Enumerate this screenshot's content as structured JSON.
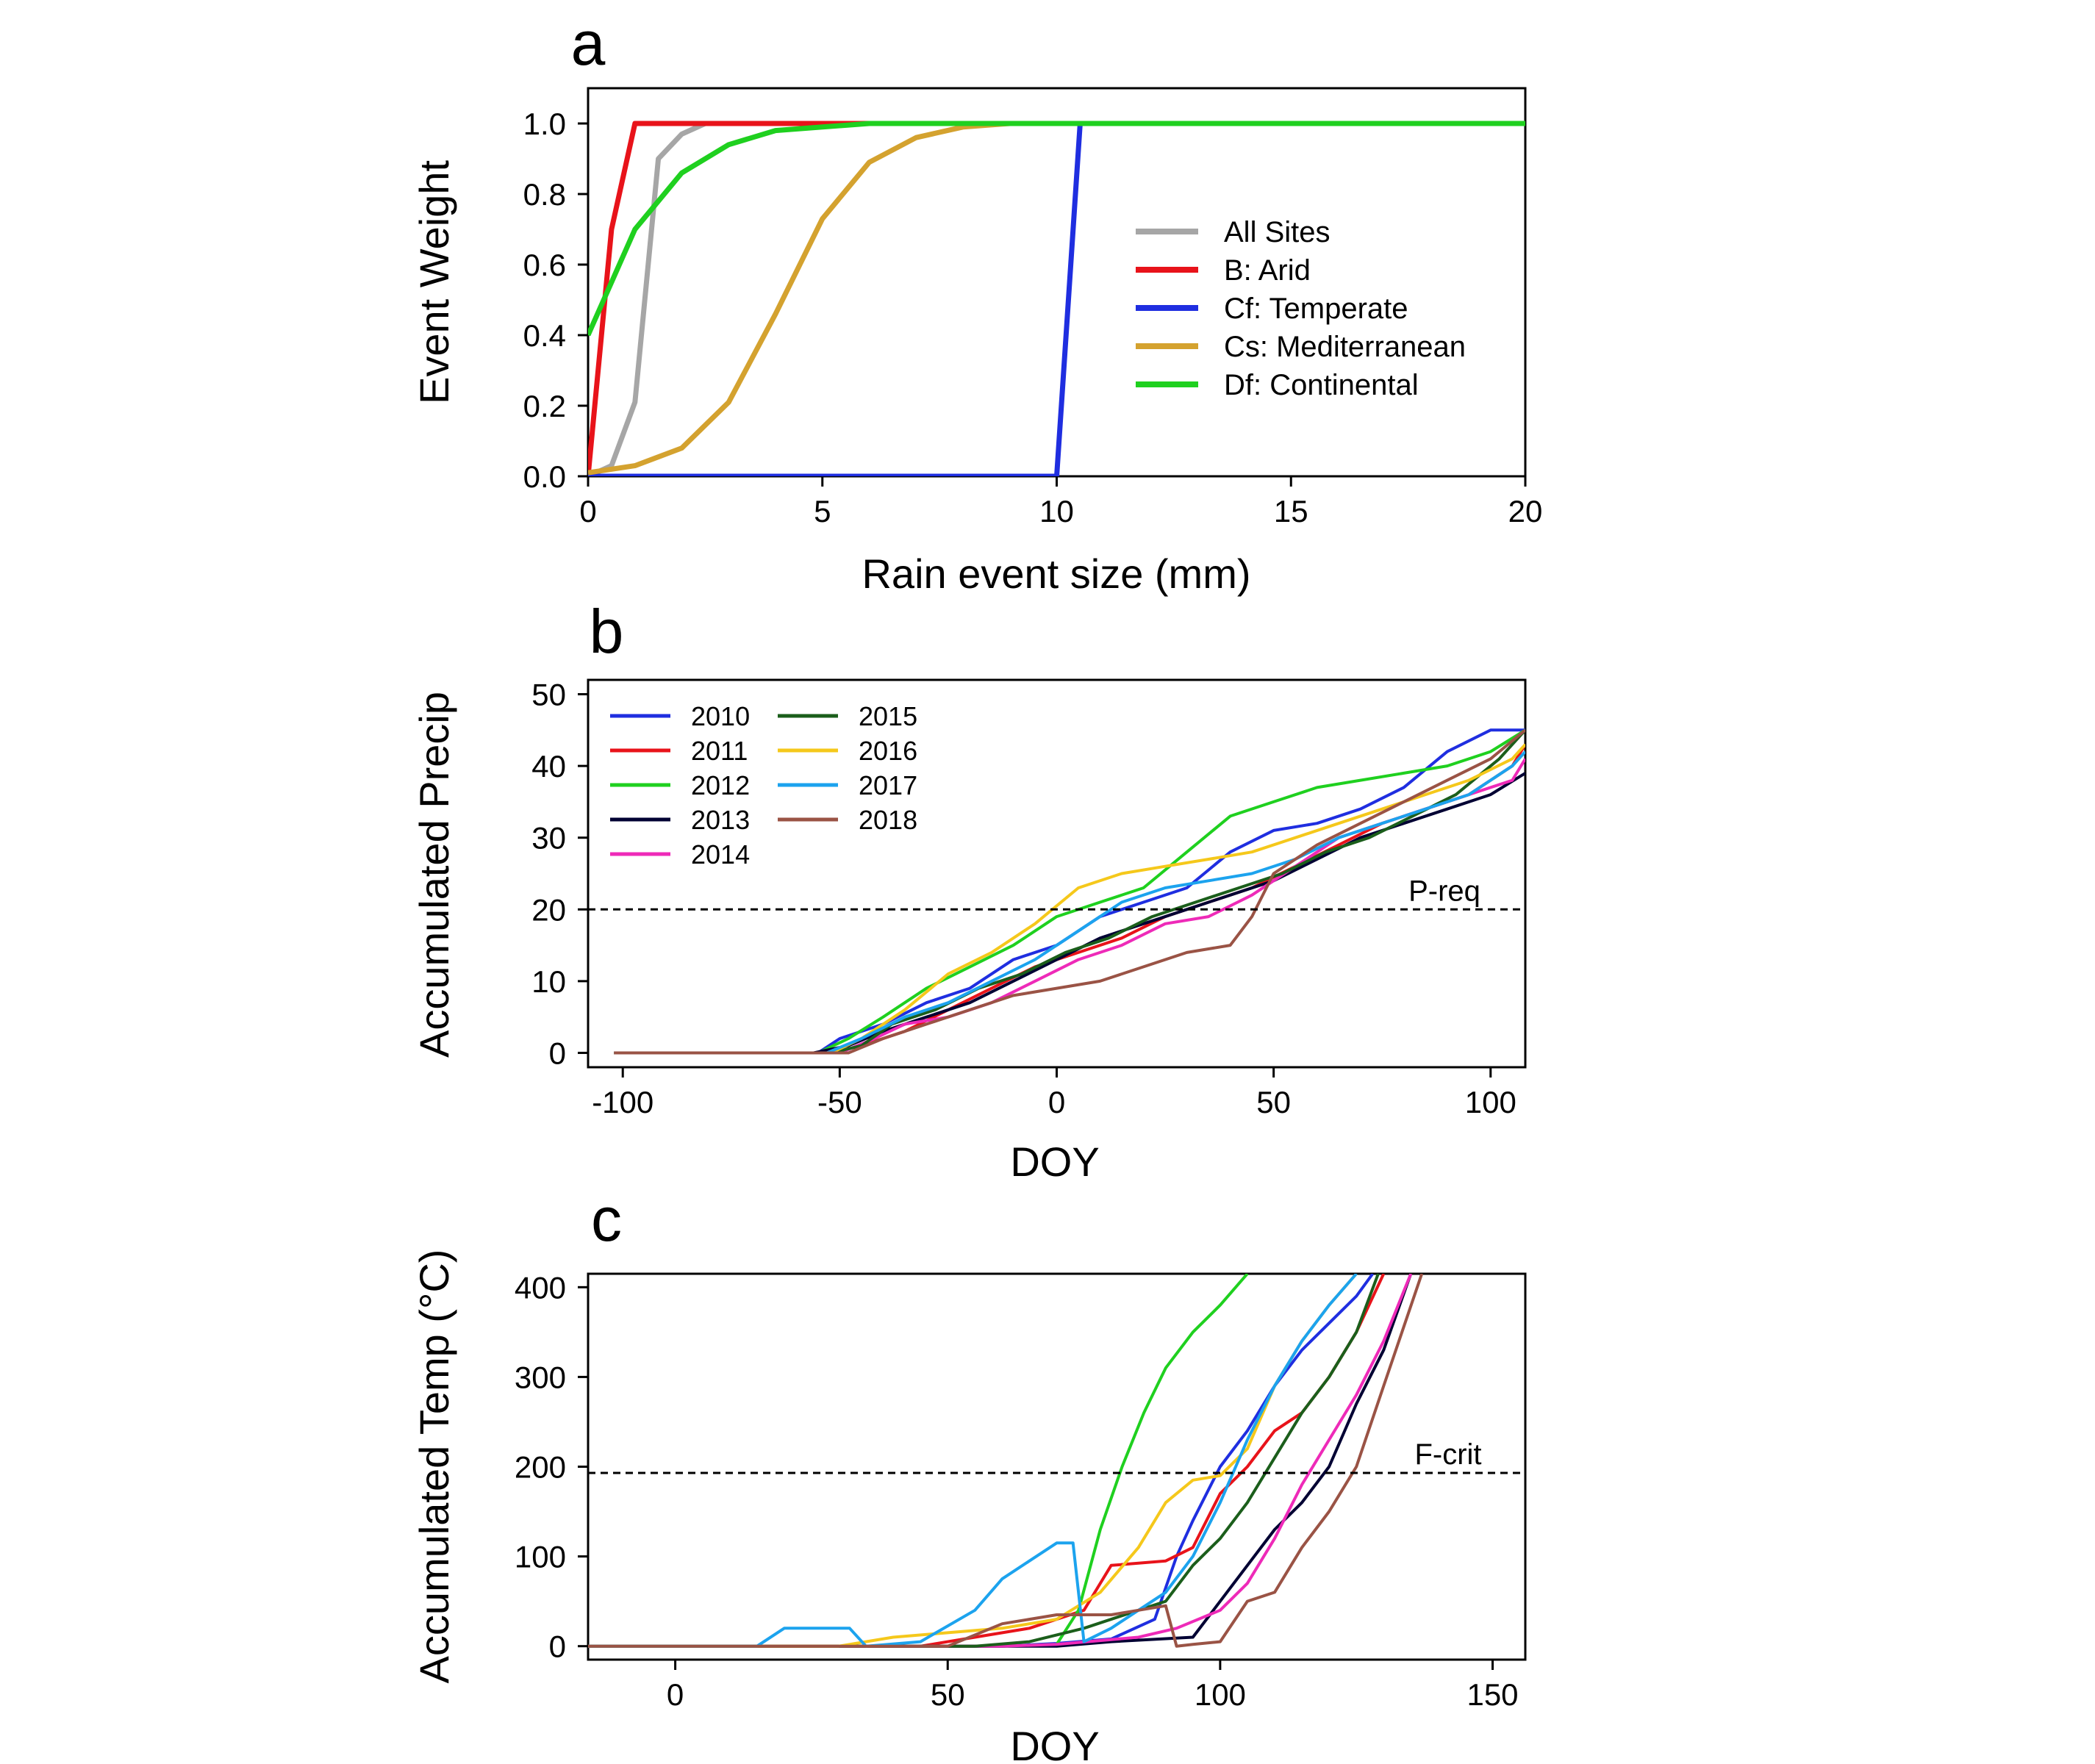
{
  "chart_data": [
    {
      "panel": "a",
      "type": "line",
      "xlabel": "Rain event size (mm)",
      "ylabel": "Event Weight",
      "xlim": [
        0,
        20
      ],
      "ylim": [
        0,
        1.1
      ],
      "xticks": [
        "0",
        "5",
        "10",
        "15",
        "20"
      ],
      "yticks": [
        "0.0",
        "0.2",
        "0.4",
        "0.6",
        "0.8",
        "1.0"
      ],
      "xtick_values": [
        0,
        5,
        10,
        15,
        20
      ],
      "ytick_values": [
        0,
        0.2,
        0.4,
        0.6,
        0.8,
        1.0
      ],
      "legend_position": "center-right",
      "series": [
        {
          "name": "All Sites",
          "color": "#a6a6a6",
          "x": [
            0,
            0.5,
            1.0,
            1.5,
            2.0,
            2.5,
            3.0,
            20
          ],
          "y": [
            0,
            0.03,
            0.21,
            0.9,
            0.97,
            1.0,
            1.0,
            1.0
          ]
        },
        {
          "name": "B: Arid",
          "color": "#e8131a",
          "x": [
            0,
            0.5,
            1.0,
            20
          ],
          "y": [
            0,
            0.7,
            1.0,
            1.0
          ]
        },
        {
          "name": "Cf: Temperate",
          "color": "#1f2ee0",
          "x": [
            0,
            10,
            10.5,
            20
          ],
          "y": [
            0,
            0,
            1.0,
            1.0
          ]
        },
        {
          "name": "Cs: Mediterranean",
          "color": "#d4a22f",
          "x": [
            0,
            1,
            2,
            3,
            4,
            5,
            6,
            7,
            8,
            9,
            10,
            20
          ],
          "y": [
            0.01,
            0.03,
            0.08,
            0.21,
            0.46,
            0.73,
            0.89,
            0.96,
            0.99,
            1.0,
            1.0,
            1.0
          ]
        },
        {
          "name": "Df: Continental",
          "color": "#1fd01f",
          "x": [
            0,
            1,
            2,
            3,
            4,
            5,
            6,
            7,
            8,
            10,
            20
          ],
          "y": [
            0.4,
            0.7,
            0.86,
            0.94,
            0.98,
            0.99,
            1.0,
            1.0,
            1.0,
            1.0,
            1.0
          ]
        }
      ]
    },
    {
      "panel": "b",
      "type": "line",
      "xlabel": "DOY",
      "ylabel": "Accumulated Precip",
      "xlim": [
        -108,
        108
      ],
      "ylim": [
        -2,
        52
      ],
      "xticks": [
        "-100",
        "-50",
        "0",
        "50",
        "100"
      ],
      "yticks": [
        "0",
        "10",
        "20",
        "30",
        "40",
        "50"
      ],
      "xtick_values": [
        -100,
        -50,
        0,
        50,
        100
      ],
      "ytick_values": [
        0,
        10,
        20,
        30,
        40,
        50
      ],
      "legend_position": "top-left",
      "reference_line": {
        "label": "P-req",
        "y": 20
      },
      "series": [
        {
          "name": "2010",
          "color": "#1f2ee0",
          "x": [
            -102,
            -55,
            -50,
            -40,
            -30,
            -20,
            -10,
            0,
            10,
            20,
            30,
            40,
            50,
            60,
            70,
            80,
            90,
            100,
            108
          ],
          "y": [
            0,
            0,
            2,
            4,
            7,
            9,
            13,
            15,
            19,
            21,
            23,
            28,
            31,
            32,
            34,
            37,
            42,
            45,
            45
          ]
        },
        {
          "name": "2011",
          "color": "#e8131a",
          "x": [
            -102,
            -52,
            -45,
            -35,
            -25,
            -15,
            -5,
            5,
            15,
            25,
            35,
            45,
            55,
            65,
            75,
            85,
            95,
            105,
            108
          ],
          "y": [
            0,
            0,
            1,
            3,
            6,
            9,
            12,
            14,
            16,
            19,
            21,
            23,
            26,
            29,
            32,
            34,
            36,
            40,
            43
          ]
        },
        {
          "name": "2012",
          "color": "#1fd01f",
          "x": [
            -102,
            -55,
            -48,
            -40,
            -30,
            -20,
            -10,
            0,
            10,
            20,
            30,
            40,
            50,
            60,
            70,
            80,
            90,
            100,
            108
          ],
          "y": [
            0,
            0,
            2,
            5,
            9,
            12,
            15,
            19,
            21,
            23,
            28,
            33,
            35,
            37,
            38,
            39,
            40,
            42,
            45
          ]
        },
        {
          "name": "2013",
          "color": "#000033",
          "x": [
            -102,
            -56,
            -48,
            -40,
            -30,
            -20,
            -10,
            0,
            10,
            20,
            30,
            40,
            50,
            60,
            70,
            80,
            90,
            100,
            108
          ],
          "y": [
            0,
            0,
            1,
            3,
            5,
            7,
            10,
            13,
            16,
            18,
            20,
            22,
            24,
            27,
            30,
            32,
            34,
            36,
            39
          ]
        },
        {
          "name": "2014",
          "color": "#ee2ab8",
          "x": [
            -102,
            -50,
            -42,
            -35,
            -25,
            -15,
            -5,
            5,
            15,
            25,
            35,
            45,
            55,
            65,
            75,
            85,
            95,
            105,
            108
          ],
          "y": [
            0,
            0,
            2,
            4,
            5,
            7,
            10,
            13,
            15,
            18,
            19,
            22,
            26,
            30,
            32,
            34,
            36,
            38,
            41
          ]
        },
        {
          "name": "2015",
          "color": "#1b5e1b",
          "x": [
            -102,
            -52,
            -45,
            -38,
            -28,
            -18,
            -8,
            2,
            12,
            22,
            32,
            42,
            52,
            62,
            72,
            82,
            92,
            102,
            108
          ],
          "y": [
            0,
            0,
            1,
            4,
            6,
            9,
            11,
            14,
            16,
            19,
            21,
            23,
            25,
            28,
            30,
            33,
            36,
            41,
            45
          ]
        },
        {
          "name": "2016",
          "color": "#f5c81b",
          "x": [
            -102,
            -52,
            -45,
            -35,
            -25,
            -15,
            -5,
            5,
            15,
            25,
            35,
            45,
            55,
            65,
            75,
            85,
            95,
            105,
            108
          ],
          "y": [
            0,
            0,
            2,
            6,
            11,
            14,
            18,
            23,
            25,
            26,
            27,
            28,
            30,
            32,
            34,
            36,
            38,
            41,
            43
          ]
        },
        {
          "name": "2017",
          "color": "#1ca3ee",
          "x": [
            -102,
            -53,
            -45,
            -35,
            -25,
            -15,
            -5,
            5,
            15,
            25,
            35,
            45,
            55,
            65,
            75,
            85,
            95,
            105,
            108
          ],
          "y": [
            0,
            0,
            2,
            5,
            7,
            10,
            13,
            17,
            21,
            23,
            24,
            25,
            27,
            30,
            32,
            34,
            36,
            40,
            42
          ]
        },
        {
          "name": "2018",
          "color": "#9a5345",
          "x": [
            -102,
            -48,
            -40,
            -30,
            -20,
            -10,
            0,
            10,
            20,
            30,
            40,
            45,
            50,
            60,
            70,
            80,
            90,
            100,
            108
          ],
          "y": [
            0,
            0,
            2,
            4,
            6,
            8,
            9,
            10,
            12,
            14,
            15,
            19,
            25,
            29,
            32,
            35,
            38,
            41,
            45
          ]
        }
      ]
    },
    {
      "panel": "c",
      "type": "line",
      "xlabel": "DOY",
      "ylabel": "Accumulated Temp (°C)",
      "xlim": [
        -16,
        156
      ],
      "ylim": [
        -15,
        415
      ],
      "xticks": [
        "0",
        "50",
        "100",
        "150"
      ],
      "yticks": [
        "0",
        "100",
        "200",
        "300",
        "400"
      ],
      "xtick_values": [
        0,
        50,
        100,
        150
      ],
      "ytick_values": [
        0,
        100,
        200,
        300,
        400
      ],
      "reference_line": {
        "label": "F-crit",
        "y": 193
      },
      "series": [
        {
          "name": "2010",
          "color": "#1f2ee0",
          "x": [
            -16,
            60,
            70,
            80,
            88,
            92,
            95,
            100,
            105,
            110,
            115,
            120,
            125,
            128
          ],
          "y": [
            0,
            0,
            3,
            8,
            30,
            100,
            140,
            200,
            240,
            290,
            330,
            360,
            390,
            415
          ]
        },
        {
          "name": "2011",
          "color": "#e8131a",
          "x": [
            -16,
            45,
            55,
            65,
            75,
            80,
            90,
            95,
            100,
            105,
            110,
            115,
            120,
            125,
            130
          ],
          "y": [
            0,
            0,
            10,
            20,
            40,
            90,
            95,
            110,
            170,
            200,
            240,
            260,
            300,
            350,
            415
          ]
        },
        {
          "name": "2012",
          "color": "#1fd01f",
          "x": [
            -16,
            60,
            70,
            74,
            78,
            82,
            86,
            90,
            95,
            100,
            105
          ],
          "y": [
            0,
            0,
            2,
            40,
            130,
            200,
            260,
            310,
            350,
            380,
            415
          ]
        },
        {
          "name": "2013",
          "color": "#000033",
          "x": [
            -16,
            70,
            80,
            95,
            100,
            105,
            110,
            115,
            120,
            125,
            130,
            135
          ],
          "y": [
            0,
            0,
            5,
            10,
            50,
            90,
            130,
            160,
            200,
            270,
            330,
            415
          ]
        },
        {
          "name": "2014",
          "color": "#ee2ab8",
          "x": [
            -16,
            60,
            70,
            85,
            92,
            100,
            105,
            110,
            115,
            120,
            125,
            130,
            135
          ],
          "y": [
            0,
            0,
            2,
            10,
            20,
            40,
            70,
            120,
            180,
            230,
            280,
            340,
            415
          ]
        },
        {
          "name": "2015",
          "color": "#1b5e1b",
          "x": [
            -16,
            55,
            65,
            75,
            85,
            90,
            95,
            100,
            105,
            110,
            115,
            120,
            125,
            129
          ],
          "y": [
            0,
            0,
            5,
            20,
            40,
            50,
            90,
            120,
            160,
            210,
            260,
            300,
            350,
            415
          ]
        },
        {
          "name": "2016",
          "color": "#f5c81b",
          "x": [
            -16,
            30,
            40,
            50,
            60,
            70,
            78,
            85,
            90,
            95,
            100,
            105,
            110,
            115,
            120,
            125
          ],
          "y": [
            0,
            0,
            10,
            15,
            20,
            30,
            60,
            110,
            160,
            185,
            190,
            220,
            290,
            340,
            380,
            415
          ]
        },
        {
          "name": "2017",
          "color": "#1ca3ee",
          "x": [
            -16,
            15,
            20,
            32,
            35,
            45,
            55,
            60,
            65,
            70,
            73,
            75,
            80,
            85,
            90,
            95,
            100,
            105,
            110,
            115,
            120,
            125
          ],
          "y": [
            0,
            0,
            20,
            20,
            0,
            5,
            40,
            75,
            95,
            115,
            115,
            5,
            20,
            40,
            60,
            100,
            160,
            230,
            290,
            340,
            380,
            415
          ]
        },
        {
          "name": "2018",
          "color": "#9a5345",
          "x": [
            -16,
            50,
            60,
            70,
            80,
            85,
            90,
            92,
            95,
            100,
            105,
            110,
            115,
            120,
            125,
            130,
            137
          ],
          "y": [
            0,
            0,
            25,
            35,
            35,
            40,
            45,
            0,
            2,
            5,
            50,
            60,
            110,
            150,
            200,
            290,
            415
          ]
        }
      ]
    }
  ]
}
